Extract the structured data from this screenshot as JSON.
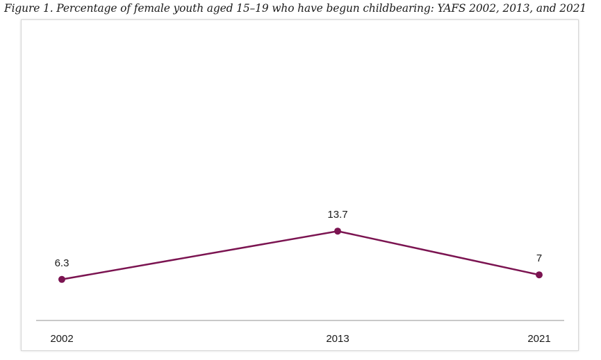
{
  "caption": "Figure 1. Percentage of female youth aged 15–19 who have begun childbearing: YAFS 2002, 2013, and 2021",
  "chart_data": {
    "type": "line",
    "title": "Figure 1. Percentage of female youth aged 15–19 who have begun childbearing: YAFS 2002, 2013, and 2021",
    "categories": [
      "2002",
      "2013",
      "2021"
    ],
    "series": [
      {
        "values": [
          6.3,
          13.7,
          7
        ],
        "labels": [
          "6.3",
          "13.7",
          "7"
        ],
        "color": "#7b1451"
      }
    ],
    "ylim": [
      0,
      20
    ],
    "grid": false,
    "xlabel": "",
    "ylabel": ""
  }
}
